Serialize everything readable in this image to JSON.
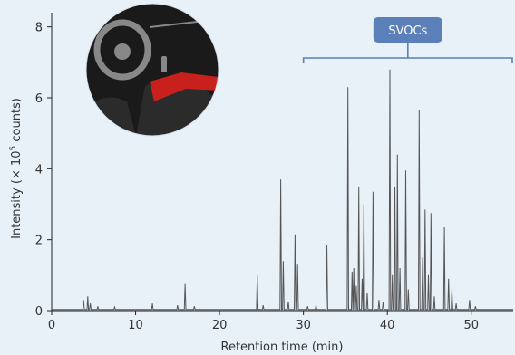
{
  "chart_data": {
    "type": "line",
    "xlabel": "Retention time (min)",
    "ylabel_prefix": "Intensity (× 10",
    "ylabel_exp": "5",
    "ylabel_suffix": " counts)",
    "xlim": [
      0,
      55
    ],
    "ylim": [
      0,
      8.4
    ],
    "xticks": [
      0,
      10,
      20,
      30,
      40,
      50
    ],
    "yticks": [
      0,
      2,
      4,
      6,
      8
    ],
    "grid": false,
    "line_color": "#555555",
    "axis_color": "#222222",
    "annotation": {
      "text": "SVOCs",
      "x_start": 30,
      "x_end": 55,
      "box_color": "#5b7fb8",
      "bracket_color": "#5b7fb8"
    },
    "peaks": [
      {
        "x": 3.8,
        "y": 0.3
      },
      {
        "x": 4.3,
        "y": 0.4
      },
      {
        "x": 4.6,
        "y": 0.2
      },
      {
        "x": 5.5,
        "y": 0.12
      },
      {
        "x": 7.5,
        "y": 0.1
      },
      {
        "x": 12.0,
        "y": 0.2
      },
      {
        "x": 15.0,
        "y": 0.15
      },
      {
        "x": 15.9,
        "y": 0.75
      },
      {
        "x": 17.0,
        "y": 0.12
      },
      {
        "x": 24.5,
        "y": 1.0
      },
      {
        "x": 25.2,
        "y": 0.15
      },
      {
        "x": 27.3,
        "y": 3.7
      },
      {
        "x": 27.6,
        "y": 1.4
      },
      {
        "x": 28.2,
        "y": 0.25
      },
      {
        "x": 29.0,
        "y": 2.15
      },
      {
        "x": 29.3,
        "y": 1.3
      },
      {
        "x": 30.5,
        "y": 0.12
      },
      {
        "x": 31.5,
        "y": 0.15
      },
      {
        "x": 32.8,
        "y": 1.85
      },
      {
        "x": 35.3,
        "y": 6.3
      },
      {
        "x": 35.8,
        "y": 1.1
      },
      {
        "x": 36.0,
        "y": 1.2
      },
      {
        "x": 36.3,
        "y": 0.7
      },
      {
        "x": 36.6,
        "y": 3.5
      },
      {
        "x": 37.0,
        "y": 0.9
      },
      {
        "x": 37.2,
        "y": 3.0
      },
      {
        "x": 37.6,
        "y": 0.5
      },
      {
        "x": 38.3,
        "y": 3.35
      },
      {
        "x": 39.0,
        "y": 0.3
      },
      {
        "x": 39.5,
        "y": 0.25
      },
      {
        "x": 40.3,
        "y": 6.8
      },
      {
        "x": 40.6,
        "y": 1.0
      },
      {
        "x": 40.9,
        "y": 3.5
      },
      {
        "x": 41.2,
        "y": 4.4
      },
      {
        "x": 41.5,
        "y": 1.2
      },
      {
        "x": 42.2,
        "y": 3.95
      },
      {
        "x": 42.5,
        "y": 0.6
      },
      {
        "x": 43.8,
        "y": 5.65
      },
      {
        "x": 44.2,
        "y": 1.5
      },
      {
        "x": 44.5,
        "y": 2.85
      },
      {
        "x": 44.9,
        "y": 1.0
      },
      {
        "x": 45.2,
        "y": 2.75
      },
      {
        "x": 45.6,
        "y": 0.4
      },
      {
        "x": 46.8,
        "y": 2.35
      },
      {
        "x": 47.3,
        "y": 0.9
      },
      {
        "x": 47.7,
        "y": 0.6
      },
      {
        "x": 48.2,
        "y": 0.2
      },
      {
        "x": 49.8,
        "y": 0.3
      },
      {
        "x": 50.5,
        "y": 0.12
      }
    ]
  },
  "photo": {
    "name": "car-interior-photo",
    "colors": {
      "dash": "#1a1a1a",
      "seat": "#2b2b2b",
      "accent": "#c8201c",
      "highlight": "#888888"
    }
  }
}
